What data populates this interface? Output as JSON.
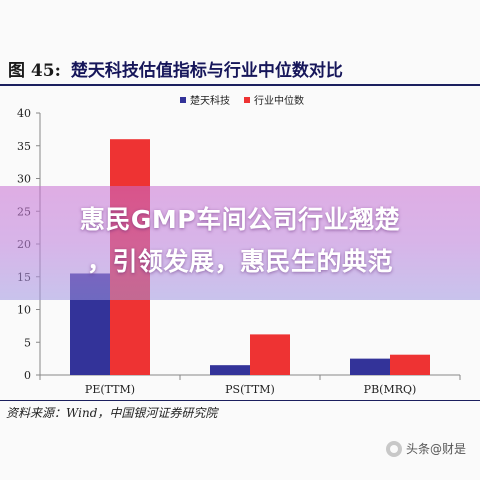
{
  "figure": {
    "number": "图 45:",
    "title": "楚天科技估值指标与行业中位数对比"
  },
  "source_note": "资料来源：Wind，中国银河证券研究院",
  "overlay": {
    "line1": "惠民GMP车间公司行业翘楚",
    "line2": "，引领发展，惠民生的典范"
  },
  "watermark": {
    "text": "头条@财是",
    "icon": "circle-logo-icon"
  },
  "chart_data": {
    "type": "bar",
    "title": "楚天科技估值指标与行业中位数对比",
    "categories": [
      "PE(TTM)",
      "PS(TTM)",
      "PB(MRQ)"
    ],
    "series": [
      {
        "name": "楚天科技",
        "color": "#333399",
        "values": [
          15.5,
          1.5,
          2.5
        ]
      },
      {
        "name": "行业中位数",
        "color": "#ee3333",
        "values": [
          36.0,
          6.2,
          3.1
        ]
      }
    ],
    "ylim": [
      0,
      40
    ],
    "yticks": [
      0,
      5,
      10,
      15,
      20,
      25,
      30,
      35,
      40
    ],
    "xlabel": "",
    "ylabel": "",
    "grid": false,
    "legend": "top-center"
  }
}
